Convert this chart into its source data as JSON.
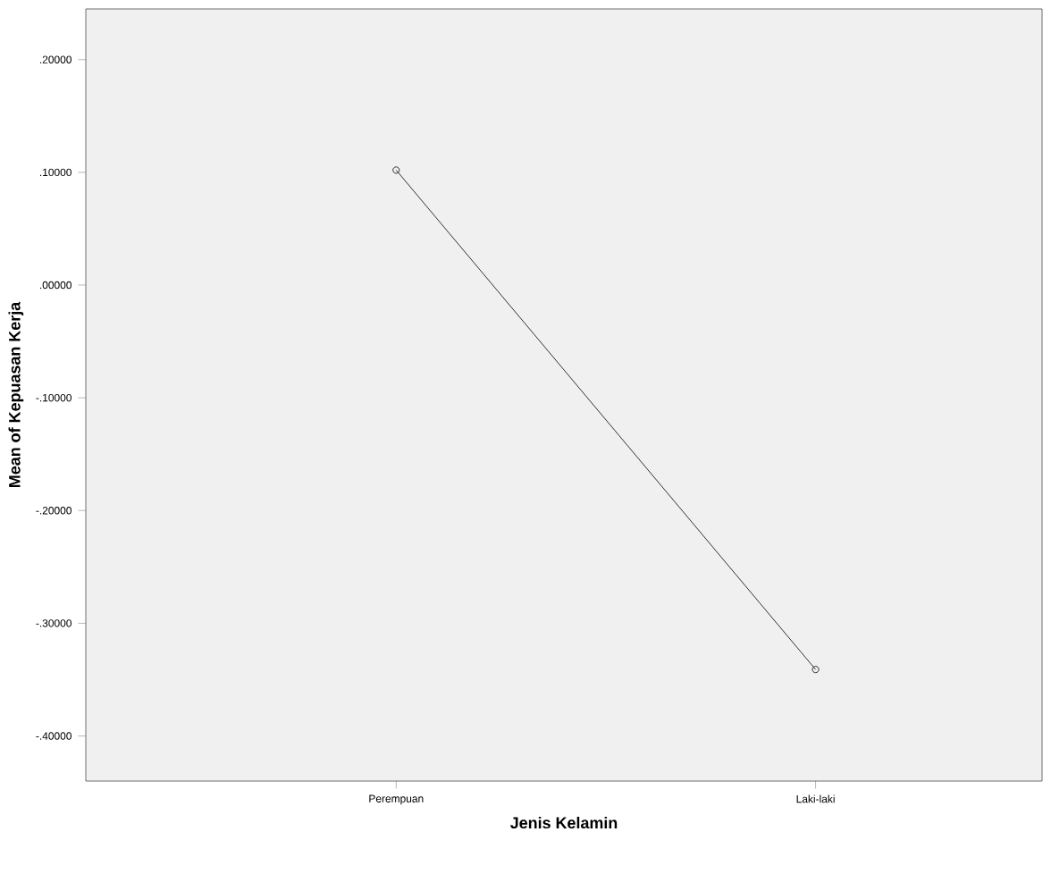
{
  "chart_data": {
    "type": "line",
    "xlabel": "Jenis Kelamin",
    "ylabel": "Mean of Kepuasan Kerja",
    "categories": [
      "Perempuan",
      "Laki-laki"
    ],
    "values": [
      0.102,
      -0.341
    ],
    "color": "#000000",
    "marker": "circle",
    "line_style": "solid",
    "grid": false,
    "ylim": [
      -0.44,
      0.245
    ],
    "yticks": [
      {
        "value": -0.4,
        "label": "-.40000"
      },
      {
        "value": -0.3,
        "label": "-.30000"
      },
      {
        "value": -0.2,
        "label": "-.20000"
      },
      {
        "value": -0.1,
        "label": "-.10000"
      },
      {
        "value": 0,
        "label": ".00000"
      },
      {
        "value": 0.1,
        "label": ".10000"
      },
      {
        "value": 0.2,
        "label": ".20000"
      }
    ]
  }
}
